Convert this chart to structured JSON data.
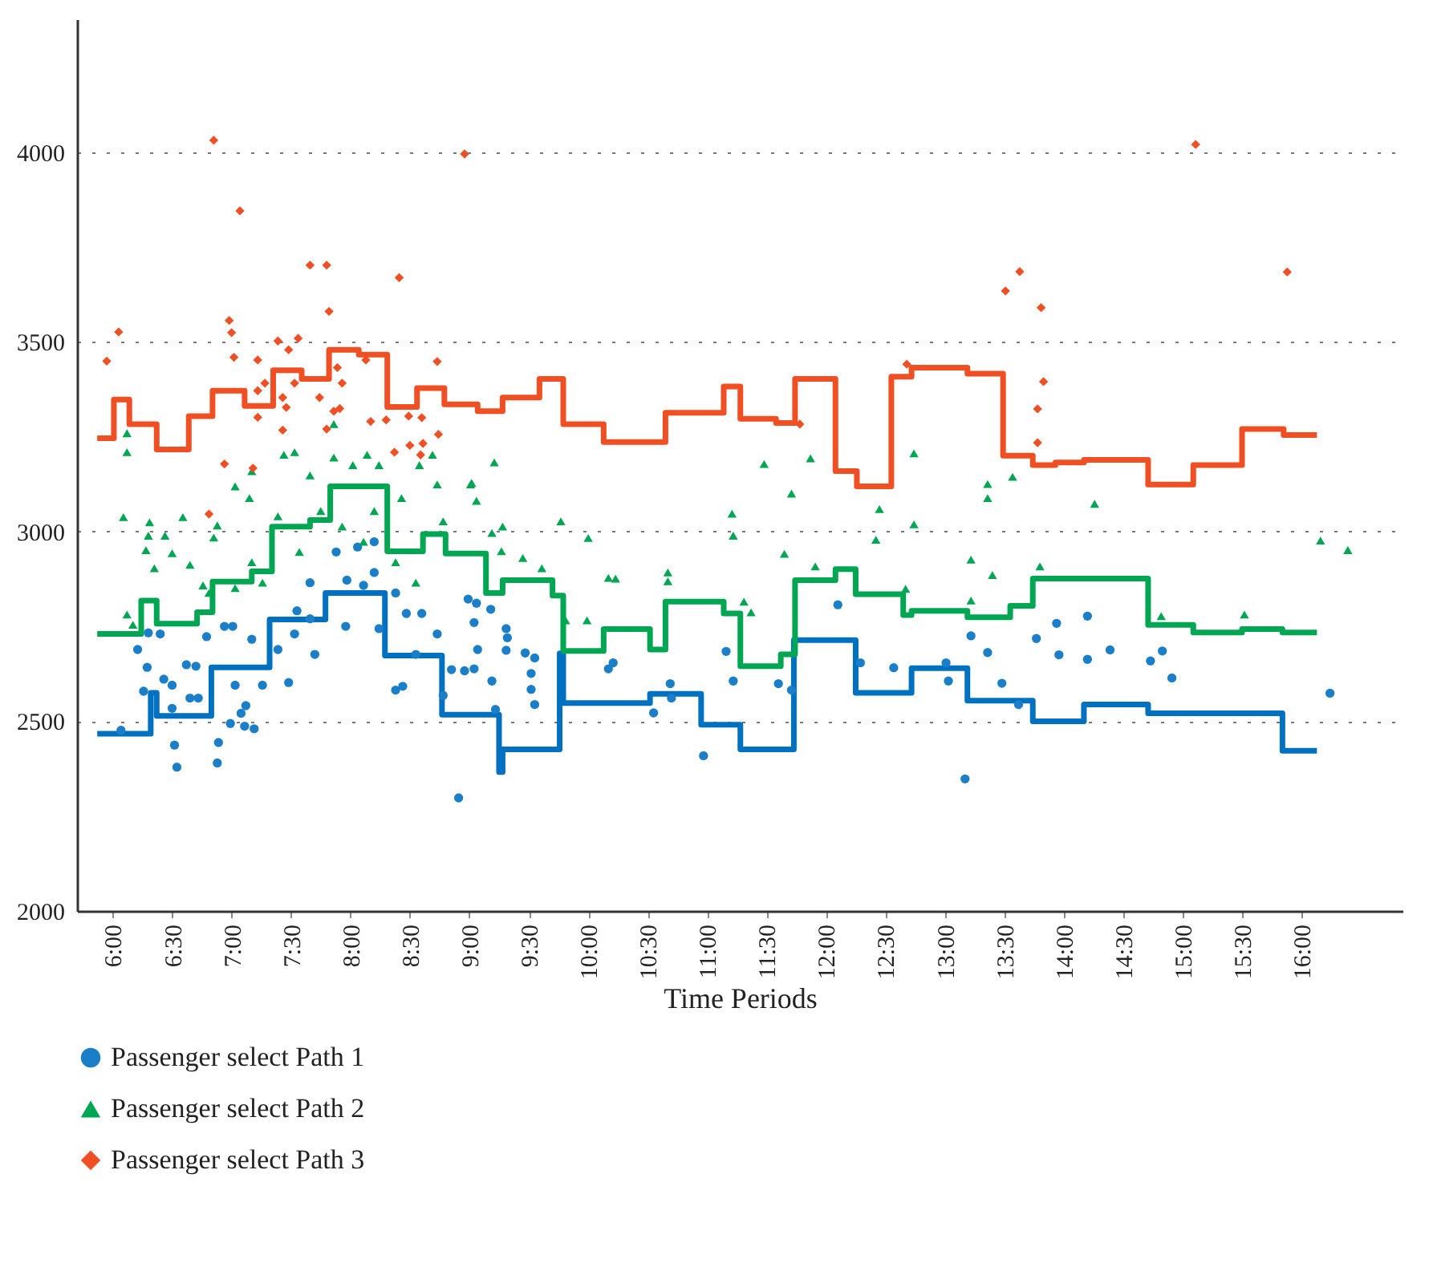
{
  "chart_data": {
    "type": "scatter",
    "xlabel": "Time Periods",
    "xlim": [
      5.7,
      16.85
    ],
    "ylim": [
      2000,
      4350
    ],
    "xticks": [
      {
        "value": 6,
        "label": "6:00"
      },
      {
        "value": 6.5,
        "label": "6:30"
      },
      {
        "value": 7,
        "label": "7:00"
      },
      {
        "value": 7.5,
        "label": "7:30"
      },
      {
        "value": 8,
        "label": "8:00"
      },
      {
        "value": 8.5,
        "label": "8:30"
      },
      {
        "value": 9,
        "label": "9:00"
      },
      {
        "value": 9.5,
        "label": "9:30"
      },
      {
        "value": 10,
        "label": "10:00"
      },
      {
        "value": 10.5,
        "label": "10:30"
      },
      {
        "value": 11,
        "label": "11:00"
      },
      {
        "value": 11.5,
        "label": "11:30"
      },
      {
        "value": 12,
        "label": "12:00"
      },
      {
        "value": 12.5,
        "label": "12:30"
      },
      {
        "value": 13,
        "label": "13:00"
      },
      {
        "value": 13.5,
        "label": "13:30"
      },
      {
        "value": 14,
        "label": "14:00"
      },
      {
        "value": 14.5,
        "label": "14:30"
      },
      {
        "value": 15,
        "label": "15:00"
      },
      {
        "value": 15.5,
        "label": "15:30"
      },
      {
        "value": 16,
        "label": "16:00"
      }
    ],
    "yticks": [
      2000,
      2500,
      3000,
      3500,
      4000
    ],
    "grid": "y",
    "legend": "bottom left",
    "series": [
      {
        "type": "step",
        "color": "#0070c0",
        "x": [
          5.87,
          6.32,
          6.37,
          6.83,
          7.32,
          7.79,
          8.29,
          8.77,
          9.25,
          9.28,
          9.76,
          9.79,
          10.52,
          10.95,
          11.28,
          11.73,
          12.25,
          12.72,
          13.19,
          13.74,
          14.17,
          14.71,
          15.84,
          16.13
        ],
        "values": [
          2467,
          2575,
          2514,
          2642,
          2768,
          2838,
          2673,
          2517,
          2366,
          2426,
          2679,
          2548,
          2572,
          2491,
          2426,
          2714,
          2575,
          2640,
          2554,
          2500,
          2544,
          2521,
          2422,
          2422
        ]
      },
      {
        "type": "step",
        "color": "#00a651",
        "x": [
          5.87,
          6.24,
          6.37,
          6.71,
          6.84,
          7.17,
          7.34,
          7.66,
          7.83,
          8.31,
          8.61,
          8.8,
          9.14,
          9.28,
          9.7,
          9.79,
          10.13,
          10.52,
          10.65,
          11.14,
          11.28,
          11.62,
          11.74,
          12.08,
          12.25,
          12.65,
          12.72,
          13.19,
          13.55,
          13.74,
          14.71,
          15.09,
          15.5,
          15.84,
          16.13
        ],
        "values": [
          2730,
          2818,
          2757,
          2787,
          2868,
          2895,
          3013,
          3030,
          3119,
          2948,
          2993,
          2942,
          2838,
          2872,
          2831,
          2685,
          2743,
          2689,
          2815,
          2784,
          2645,
          2676,
          2872,
          2901,
          2835,
          2780,
          2791,
          2774,
          2804,
          2876,
          2754,
          2734,
          2743,
          2734,
          2734
        ]
      },
      {
        "type": "step",
        "color": "#f04e23",
        "x": [
          5.87,
          6.01,
          6.14,
          6.37,
          6.64,
          6.84,
          7.11,
          7.35,
          7.59,
          7.82,
          8.07,
          8.31,
          8.56,
          8.79,
          9.07,
          9.28,
          9.59,
          9.79,
          10.13,
          10.65,
          11.14,
          11.28,
          11.58,
          11.74,
          12.08,
          12.26,
          12.55,
          12.72,
          13.19,
          13.49,
          13.74,
          13.93,
          14.17,
          14.71,
          15.09,
          15.5,
          15.85,
          16.13
        ],
        "values": [
          3246,
          3348,
          3283,
          3216,
          3304,
          3371,
          3331,
          3425,
          3402,
          3479,
          3466,
          3328,
          3378,
          3335,
          3317,
          3353,
          3402,
          3283,
          3236,
          3313,
          3382,
          3297,
          3286,
          3402,
          3159,
          3119,
          3408,
          3432,
          3416,
          3200,
          3175,
          3182,
          3189,
          3124,
          3175,
          3270,
          3254,
          3254
        ]
      },
      {
        "name": "Passenger select Path 1",
        "color": "#1a7fc8",
        "marker": "circle",
        "x": [
          6.07,
          6.3,
          6.4,
          6.21,
          6.29,
          6.26,
          6.43,
          6.5,
          6.5,
          6.52,
          6.54,
          6.62,
          6.7,
          6.65,
          6.72,
          6.88,
          6.89,
          6.79,
          6.94,
          7.01,
          6.99,
          7.08,
          7.12,
          7.11,
          7.19,
          7.03,
          7.26,
          7.17,
          7.39,
          7.48,
          7.53,
          7.55,
          7.66,
          7.66,
          7.88,
          8.06,
          8.2,
          7.97,
          8.11,
          8.2,
          8.38,
          8.47,
          8.6,
          8.38,
          8.44,
          8.78,
          8.85,
          8.73,
          8.91,
          7.96,
          7.7,
          8.24,
          8.55,
          8.99,
          9.06,
          9.18,
          9.04,
          9.31,
          9.32,
          9.31,
          9.07,
          8.96,
          9.04,
          9.19,
          9.47,
          9.55,
          9.52,
          9.52,
          9.55,
          9.22,
          10.17,
          10.21,
          10.69,
          10.7,
          10.55,
          10.97,
          11.16,
          11.22,
          11.6,
          11.71,
          12.1,
          12.29,
          12.57,
          13.01,
          13.03,
          13.17,
          13.22,
          13.36,
          13.48,
          13.62,
          13.77,
          13.94,
          13.96,
          14.2,
          14.2,
          14.39,
          14.73,
          14.83,
          14.91,
          16.24
        ],
        "values": [
          2476,
          2733,
          2730,
          2689,
          2642,
          2579,
          2611,
          2595,
          2534,
          2437,
          2379,
          2649,
          2645,
          2561,
          2561,
          2390,
          2444,
          2723,
          2750,
          2750,
          2494,
          2521,
          2541,
          2487,
          2480,
          2595,
          2595,
          2716,
          2689,
          2602,
          2730,
          2791,
          2770,
          2865,
          2946,
          2959,
          2973,
          2872,
          2858,
          2892,
          2838,
          2784,
          2784,
          2582,
          2592,
          2568,
          2636,
          2730,
          2298,
          2750,
          2676,
          2744,
          2676,
          2822,
          2811,
          2795,
          2760,
          2744,
          2720,
          2687,
          2689,
          2633,
          2638,
          2606,
          2680,
          2667,
          2626,
          2584,
          2544,
          2531,
          2638,
          2654,
          2599,
          2561,
          2522,
          2409,
          2684,
          2606,
          2599,
          2582,
          2807,
          2654,
          2641,
          2654,
          2606,
          2348,
          2725,
          2681,
          2600,
          2544,
          2718,
          2758,
          2675,
          2777,
          2663,
          2688,
          2659,
          2685,
          2614,
          2574
        ]
      },
      {
        "name": "Passenger select Path 2",
        "color": "#00a651",
        "marker": "triangle",
        "x": [
          6.12,
          6.12,
          6.09,
          6.31,
          6.3,
          6.28,
          6.44,
          6.5,
          6.35,
          6.59,
          6.65,
          6.12,
          6.17,
          6.76,
          6.85,
          6.88,
          7.03,
          7.15,
          7.17,
          7.44,
          7.53,
          7.66,
          7.86,
          7.86,
          8.02,
          8.14,
          8.24,
          8.43,
          8.58,
          8.69,
          8.73,
          8.78,
          7.39,
          7.17,
          7.03,
          7.57,
          7.75,
          7.93,
          8.11,
          8.38,
          8.55,
          8.2,
          7.26,
          6.81,
          9.02,
          9.21,
          9.01,
          9.06,
          9.19,
          9.28,
          9.27,
          9.45,
          9.61,
          9.77,
          10.0,
          9.81,
          9.99,
          10.17,
          10.23,
          10.67,
          10.67,
          11.21,
          11.22,
          11.31,
          11.37,
          11.48,
          11.71,
          11.65,
          11.87,
          11.91,
          12.45,
          12.42,
          12.74,
          12.74,
          12.67,
          13.36,
          13.36,
          13.57,
          14.26,
          13.22,
          13.4,
          13.22,
          13.8,
          14.82,
          15.52,
          16.16,
          16.39
        ],
        "values": [
          3259,
          3209,
          3038,
          3024,
          2989,
          2951,
          2989,
          2943,
          2903,
          3038,
          2912,
          2781,
          2754,
          2858,
          2984,
          3016,
          3119,
          3088,
          3159,
          3202,
          3209,
          3148,
          3283,
          3195,
          3175,
          3202,
          3175,
          3088,
          3175,
          3202,
          3124,
          3027,
          3040,
          2919,
          2851,
          2946,
          3054,
          3013,
          2973,
          2919,
          2865,
          3054,
          2865,
          2838,
          3128,
          3182,
          3124,
          3081,
          2996,
          3013,
          2948,
          2930,
          2903,
          3027,
          2983,
          2766,
          2766,
          2878,
          2876,
          2892,
          2869,
          3047,
          2989,
          2815,
          2787,
          3178,
          3100,
          2941,
          3193,
          2908,
          3059,
          2978,
          3206,
          3019,
          2849,
          3125,
          3088,
          3144,
          3073,
          2926,
          2885,
          2818,
          2908,
          2777,
          2781,
          2976,
          2951
        ]
      },
      {
        "name": "Passenger select Path 3",
        "color": "#f04e23",
        "marker": "diamond",
        "x": [
          5.95,
          6.05,
          6.85,
          7.07,
          7.66,
          7.8,
          8.41,
          7.82,
          6.98,
          7.0,
          7.02,
          7.22,
          7.39,
          7.48,
          7.56,
          7.28,
          7.22,
          7.43,
          7.46,
          7.22,
          7.53,
          7.43,
          7.74,
          7.8,
          7.86,
          7.91,
          7.93,
          7.89,
          8.13,
          8.73,
          8.17,
          8.3,
          8.49,
          8.6,
          8.74,
          8.37,
          8.5,
          8.61,
          8.59,
          6.94,
          7.18,
          6.81,
          8.96,
          11.78,
          12.68,
          15.11,
          13.63,
          13.51,
          13.81,
          15.88,
          13.83,
          13.78,
          13.78
        ],
        "values": [
          3449,
          3526,
          4031,
          3845,
          3702,
          3702,
          3669,
          3580,
          3556,
          3524,
          3459,
          3452,
          3502,
          3479,
          3509,
          3391,
          3371,
          3353,
          3327,
          3301,
          3391,
          3267,
          3353,
          3270,
          3317,
          3324,
          3391,
          3432,
          3452,
          3448,
          3290,
          3294,
          3304,
          3300,
          3256,
          3209,
          3227,
          3232,
          3202,
          3178,
          3167,
          3046,
          3995,
          3283,
          3441,
          4020,
          3685,
          3634,
          3590,
          3684,
          3395,
          3323,
          3234
        ]
      }
    ]
  }
}
